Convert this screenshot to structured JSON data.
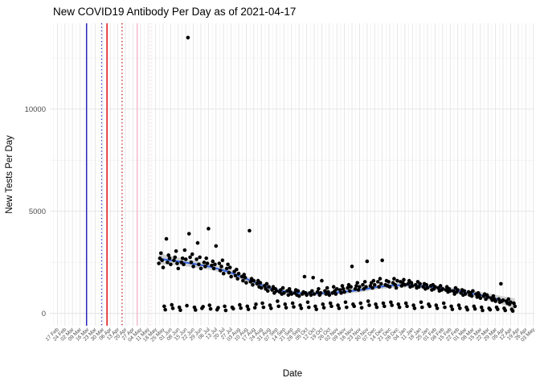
{
  "title": "New COVID19 Antibody Per Day as of 2021-04-17",
  "chart_data": {
    "type": "scatter",
    "title": "New COVID19 Antibody Per Day as of 2021-04-17",
    "xlabel": "Date",
    "ylabel": "New Tests Per Day",
    "x_start_date": "2020-02-17",
    "x_tick_interval_days": 7,
    "x_tick_labels": [
      "17 Feb",
      "24 Feb",
      "02 Mar",
      "09 Mar",
      "16 Mar",
      "23 Mar",
      "30 Mar",
      "06 Apr",
      "13 Apr",
      "20 Apr",
      "27 Apr",
      "04 May",
      "11 May",
      "18 May",
      "25 May",
      "01 Jun",
      "08 Jun",
      "15 Jun",
      "22 Jun",
      "29 Jun",
      "06 Jul",
      "13 Jul",
      "20 Jul",
      "27 Jul",
      "03 Aug",
      "10 Aug",
      "17 Aug",
      "24 Aug",
      "31 Aug",
      "07 Sep",
      "14 Sep",
      "21 Sep",
      "28 Sep",
      "05 Oct",
      "12 Oct",
      "19 Oct",
      "26 Oct",
      "02 Nov",
      "09 Nov",
      "16 Nov",
      "23 Nov",
      "30 Nov",
      "07 Dec",
      "14 Dec",
      "21 Dec",
      "28 Dec",
      "04 Jan",
      "11 Jan",
      "18 Jan",
      "25 Jan",
      "01 Feb",
      "08 Feb",
      "15 Feb",
      "22 Feb",
      "01 Mar",
      "08 Mar",
      "15 Mar",
      "22 Mar",
      "29 Mar",
      "05 Apr",
      "12 Apr",
      "19 Apr",
      "26 Apr",
      "03 May"
    ],
    "y_ticks": [
      0,
      5000,
      10000
    ],
    "y_minor_ticks": [
      2500,
      7500,
      12500
    ],
    "ylim": [
      -600,
      14200
    ],
    "xlim_days": [
      -7,
      442
    ],
    "grid": true,
    "legend": "none",
    "vlines": [
      {
        "day": 27,
        "date": "2020-03-15",
        "color": "#2222BE",
        "style": "solid"
      },
      {
        "day": 41,
        "date": "2020-03-29",
        "color": "#2222BE",
        "style": "dotted"
      },
      {
        "day": 46,
        "date": "2020-04-03",
        "color": "#E00000",
        "style": "solid"
      },
      {
        "day": 60,
        "date": "2020-04-17",
        "color": "#C00000",
        "style": "dotted"
      },
      {
        "day": 74,
        "date": "2020-05-01",
        "color": "#F4B8CC",
        "style": "solid"
      },
      {
        "day": 86,
        "date": "2020-05-13",
        "color": "#F7CBDA",
        "style": "dotted"
      }
    ],
    "smooth_line": [
      [
        94,
        2680
      ],
      [
        110,
        2560
      ],
      [
        126,
        2430
      ],
      [
        142,
        2280
      ],
      [
        158,
        2050
      ],
      [
        172,
        1760
      ],
      [
        186,
        1460
      ],
      [
        200,
        1180
      ],
      [
        212,
        1060
      ],
      [
        226,
        990
      ],
      [
        240,
        975
      ],
      [
        254,
        1000
      ],
      [
        268,
        1075
      ],
      [
        282,
        1160
      ],
      [
        296,
        1290
      ],
      [
        310,
        1365
      ],
      [
        324,
        1395
      ],
      [
        338,
        1340
      ],
      [
        352,
        1250
      ],
      [
        366,
        1140
      ],
      [
        380,
        1010
      ],
      [
        394,
        880
      ],
      [
        408,
        700
      ],
      [
        418,
        560
      ],
      [
        424,
        460
      ]
    ],
    "smooth_ribbon_halfwidth": [
      270,
      200,
      170,
      150,
      140,
      130,
      120,
      115,
      110,
      105,
      105,
      105,
      110,
      110,
      115,
      120,
      120,
      120,
      125,
      130,
      140,
      160,
      190,
      230,
      280
    ],
    "outlier": [
      121,
      13500
    ],
    "points": [
      [
        94,
        2450
      ],
      [
        95,
        2700
      ],
      [
        96,
        2950
      ],
      [
        97,
        2600
      ],
      [
        98,
        2250
      ],
      [
        99,
        350
      ],
      [
        100,
        180
      ],
      [
        101,
        3650
      ],
      [
        102,
        2500
      ],
      [
        103,
        2850
      ],
      [
        104,
        2700
      ],
      [
        105,
        2400
      ],
      [
        106,
        420
      ],
      [
        107,
        250
      ],
      [
        108,
        2600
      ],
      [
        109,
        2750
      ],
      [
        110,
        3050
      ],
      [
        111,
        2450
      ],
      [
        112,
        2200
      ],
      [
        113,
        300
      ],
      [
        114,
        160
      ],
      [
        115,
        2500
      ],
      [
        116,
        2700
      ],
      [
        117,
        2400
      ],
      [
        118,
        3100
      ],
      [
        119,
        2650
      ],
      [
        120,
        380
      ],
      [
        121,
        13500
      ],
      [
        122,
        3900
      ],
      [
        123,
        2750
      ],
      [
        124,
        2500
      ],
      [
        125,
        2900
      ],
      [
        126,
        2300
      ],
      [
        127,
        300
      ],
      [
        128,
        170
      ],
      [
        129,
        2650
      ],
      [
        130,
        3450
      ],
      [
        131,
        2400
      ],
      [
        132,
        2750
      ],
      [
        133,
        2200
      ],
      [
        134,
        250
      ],
      [
        135,
        330
      ],
      [
        136,
        2500
      ],
      [
        137,
        2300
      ],
      [
        138,
        2700
      ],
      [
        139,
        2450
      ],
      [
        140,
        4150
      ],
      [
        141,
        400
      ],
      [
        142,
        220
      ],
      [
        143,
        2350
      ],
      [
        144,
        2550
      ],
      [
        145,
        2200
      ],
      [
        146,
        2400
      ],
      [
        147,
        3300
      ],
      [
        148,
        180
      ],
      [
        149,
        280
      ],
      [
        150,
        2450
      ],
      [
        151,
        2100
      ],
      [
        152,
        2300
      ],
      [
        153,
        2600
      ],
      [
        154,
        1950
      ],
      [
        155,
        350
      ],
      [
        156,
        150
      ],
      [
        157,
        2200
      ],
      [
        158,
        2400
      ],
      [
        159,
        2000
      ],
      [
        160,
        2250
      ],
      [
        161,
        1800
      ],
      [
        162,
        300
      ],
      [
        163,
        230
      ],
      [
        164,
        2050
      ],
      [
        165,
        1850
      ],
      [
        166,
        2150
      ],
      [
        167,
        1700
      ],
      [
        168,
        1950
      ],
      [
        169,
        420
      ],
      [
        170,
        260
      ],
      [
        171,
        1800
      ],
      [
        172,
        1600
      ],
      [
        173,
        1900
      ],
      [
        174,
        1750
      ],
      [
        175,
        1500
      ],
      [
        176,
        350
      ],
      [
        177,
        200
      ],
      [
        178,
        4050
      ],
      [
        179,
        1550
      ],
      [
        180,
        1700
      ],
      [
        181,
        1400
      ],
      [
        182,
        1600
      ],
      [
        183,
        280
      ],
      [
        184,
        450
      ],
      [
        185,
        1450
      ],
      [
        186,
        1600
      ],
      [
        187,
        1300
      ],
      [
        188,
        1500
      ],
      [
        189,
        1250
      ],
      [
        190,
        500
      ],
      [
        191,
        300
      ],
      [
        192,
        1350
      ],
      [
        193,
        1200
      ],
      [
        194,
        1450
      ],
      [
        195,
        1100
      ],
      [
        196,
        1300
      ],
      [
        197,
        400
      ],
      [
        198,
        250
      ],
      [
        199,
        1150
      ],
      [
        200,
        1300
      ],
      [
        201,
        1000
      ],
      [
        202,
        1200
      ],
      [
        203,
        1100
      ],
      [
        204,
        600
      ],
      [
        205,
        350
      ],
      [
        206,
        1050
      ],
      [
        207,
        1150
      ],
      [
        208,
        950
      ],
      [
        209,
        1250
      ],
      [
        210,
        1000
      ],
      [
        211,
        450
      ],
      [
        212,
        280
      ],
      [
        213,
        1100
      ],
      [
        214,
        900
      ],
      [
        215,
        1200
      ],
      [
        216,
        1050
      ],
      [
        217,
        950
      ],
      [
        218,
        500
      ],
      [
        219,
        320
      ],
      [
        220,
        1000
      ],
      [
        221,
        1150
      ],
      [
        222,
        900
      ],
      [
        223,
        1100
      ],
      [
        224,
        850
      ],
      [
        225,
        400
      ],
      [
        226,
        250
      ],
      [
        227,
        950
      ],
      [
        228,
        1050
      ],
      [
        229,
        1800
      ],
      [
        230,
        1000
      ],
      [
        231,
        900
      ],
      [
        232,
        550
      ],
      [
        233,
        300
      ],
      [
        234,
        1000
      ],
      [
        235,
        900
      ],
      [
        236,
        1100
      ],
      [
        237,
        1750
      ],
      [
        238,
        950
      ],
      [
        239,
        350
      ],
      [
        240,
        200
      ],
      [
        241,
        1050
      ],
      [
        242,
        1200
      ],
      [
        243,
        900
      ],
      [
        244,
        1000
      ],
      [
        245,
        1600
      ],
      [
        246,
        450
      ],
      [
        247,
        280
      ],
      [
        248,
        1100
      ],
      [
        249,
        950
      ],
      [
        250,
        1250
      ],
      [
        251,
        1050
      ],
      [
        252,
        900
      ],
      [
        253,
        500
      ],
      [
        254,
        350
      ],
      [
        255,
        1000
      ],
      [
        256,
        1300
      ],
      [
        257,
        1100
      ],
      [
        258,
        950
      ],
      [
        259,
        1200
      ],
      [
        260,
        400
      ],
      [
        261,
        250
      ],
      [
        262,
        1150
      ],
      [
        263,
        1000
      ],
      [
        264,
        1350
      ],
      [
        265,
        1200
      ],
      [
        266,
        1050
      ],
      [
        267,
        550
      ],
      [
        268,
        300
      ],
      [
        269,
        1250
      ],
      [
        270,
        1400
      ],
      [
        271,
        1100
      ],
      [
        272,
        1300
      ],
      [
        273,
        2300
      ],
      [
        274,
        450
      ],
      [
        275,
        350
      ],
      [
        276,
        1200
      ],
      [
        277,
        1350
      ],
      [
        278,
        1500
      ],
      [
        279,
        1150
      ],
      [
        280,
        1300
      ],
      [
        281,
        500
      ],
      [
        282,
        280
      ],
      [
        283,
        1400
      ],
      [
        284,
        1200
      ],
      [
        285,
        1550
      ],
      [
        286,
        1300
      ],
      [
        287,
        2550
      ],
      [
        288,
        600
      ],
      [
        289,
        400
      ],
      [
        290,
        1350
      ],
      [
        291,
        1500
      ],
      [
        292,
        1250
      ],
      [
        293,
        1600
      ],
      [
        294,
        1400
      ],
      [
        295,
        450
      ],
      [
        296,
        300
      ],
      [
        297,
        1550
      ],
      [
        298,
        1300
      ],
      [
        299,
        1700
      ],
      [
        300,
        1450
      ],
      [
        301,
        2600
      ],
      [
        302,
        500
      ],
      [
        303,
        350
      ],
      [
        304,
        1400
      ],
      [
        305,
        1600
      ],
      [
        306,
        1350
      ],
      [
        307,
        1550
      ],
      [
        308,
        1300
      ],
      [
        309,
        550
      ],
      [
        310,
        400
      ],
      [
        311,
        1500
      ],
      [
        312,
        1700
      ],
      [
        313,
        1400
      ],
      [
        314,
        1250
      ],
      [
        315,
        1600
      ],
      [
        316,
        450
      ],
      [
        317,
        300
      ],
      [
        318,
        1550
      ],
      [
        319,
        1350
      ],
      [
        320,
        1500
      ],
      [
        321,
        1650
      ],
      [
        322,
        1400
      ],
      [
        323,
        500
      ],
      [
        324,
        350
      ],
      [
        325,
        1450
      ],
      [
        326,
        1600
      ],
      [
        327,
        1300
      ],
      [
        328,
        1500
      ],
      [
        329,
        1350
      ],
      [
        330,
        400
      ],
      [
        331,
        250
      ],
      [
        332,
        1400
      ],
      [
        333,
        1250
      ],
      [
        334,
        1550
      ],
      [
        335,
        1300
      ],
      [
        336,
        1450
      ],
      [
        337,
        550
      ],
      [
        338,
        300
      ],
      [
        339,
        1300
      ],
      [
        340,
        1450
      ],
      [
        341,
        1200
      ],
      [
        342,
        1400
      ],
      [
        343,
        1250
      ],
      [
        344,
        450
      ],
      [
        345,
        350
      ],
      [
        346,
        1350
      ],
      [
        347,
        1150
      ],
      [
        348,
        1400
      ],
      [
        349,
        1200
      ],
      [
        350,
        1300
      ],
      [
        351,
        400
      ],
      [
        352,
        250
      ],
      [
        353,
        1250
      ],
      [
        354,
        1100
      ],
      [
        355,
        1350
      ],
      [
        356,
        1150
      ],
      [
        357,
        1200
      ],
      [
        358,
        500
      ],
      [
        359,
        300
      ],
      [
        360,
        1150
      ],
      [
        361,
        1300
      ],
      [
        362,
        1050
      ],
      [
        363,
        1200
      ],
      [
        364,
        1100
      ],
      [
        365,
        350
      ],
      [
        366,
        200
      ],
      [
        367,
        1100
      ],
      [
        368,
        950
      ],
      [
        369,
        1250
      ],
      [
        370,
        1050
      ],
      [
        371,
        1150
      ],
      [
        372,
        400
      ],
      [
        373,
        250
      ],
      [
        374,
        1000
      ],
      [
        375,
        1150
      ],
      [
        376,
        900
      ],
      [
        377,
        1100
      ],
      [
        378,
        950
      ],
      [
        379,
        300
      ],
      [
        380,
        180
      ],
      [
        381,
        1050
      ],
      [
        382,
        900
      ],
      [
        383,
        1000
      ],
      [
        384,
        850
      ],
      [
        385,
        1100
      ],
      [
        386,
        350
      ],
      [
        387,
        220
      ],
      [
        388,
        950
      ],
      [
        389,
        800
      ],
      [
        390,
        1000
      ],
      [
        391,
        900
      ],
      [
        392,
        750
      ],
      [
        393,
        300
      ],
      [
        394,
        150
      ],
      [
        395,
        850
      ],
      [
        396,
        950
      ],
      [
        397,
        700
      ],
      [
        398,
        900
      ],
      [
        399,
        800
      ],
      [
        400,
        250
      ],
      [
        401,
        180
      ],
      [
        402,
        750
      ],
      [
        403,
        650
      ],
      [
        404,
        850
      ],
      [
        405,
        700
      ],
      [
        406,
        600
      ],
      [
        407,
        300
      ],
      [
        408,
        200
      ],
      [
        409,
        700
      ],
      [
        410,
        550
      ],
      [
        411,
        1450
      ],
      [
        412,
        600
      ],
      [
        413,
        650
      ],
      [
        414,
        250
      ],
      [
        415,
        150
      ],
      [
        416,
        600
      ],
      [
        417,
        500
      ],
      [
        418,
        700
      ],
      [
        419,
        450
      ],
      [
        420,
        550
      ],
      [
        421,
        200
      ],
      [
        422,
        120
      ],
      [
        423,
        500
      ],
      [
        424,
        350
      ]
    ],
    "colors": {
      "point": "#000000",
      "smooth_line": "#3464E0",
      "ribbon": "#999999",
      "grid_major": "#E4E4E4",
      "grid_minor": "#F0F0F0",
      "tick_label": "#4D4D4D",
      "title": "#000000"
    }
  }
}
